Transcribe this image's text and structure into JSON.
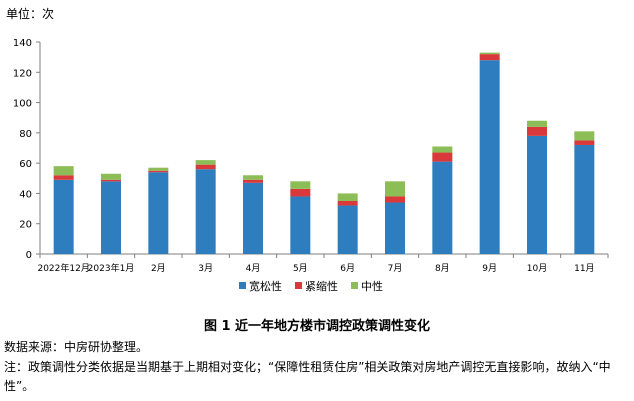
{
  "unit_label": "单位：次",
  "figure_caption": "图 1  近一年地方楼市调控政策调性变化",
  "source_text": "数据来源：中房研协整理。",
  "note_text": "注：政策调性分类依据是当期基于上期相对变化；“保障性租赁住房”相关政策对房地产调控无直接影响，故纳入“中性”。",
  "colors": {
    "宽松性": "#2e7ebf",
    "紧缩性": "#d9393a",
    "中性": "#8dbd56"
  },
  "chart_data": {
    "type": "bar",
    "stacked": true,
    "categories": [
      "2022年12月",
      "2023年1月",
      "2月",
      "3月",
      "4月",
      "5月",
      "6月",
      "7月",
      "8月",
      "9月",
      "10月",
      "11月"
    ],
    "series": [
      {
        "name": "宽松性",
        "values": [
          49,
          48,
          54,
          56,
          47,
          38,
          32,
          34,
          61,
          128,
          78,
          72
        ]
      },
      {
        "name": "紧缩性",
        "values": [
          3,
          1,
          1,
          3,
          2,
          5,
          3,
          4,
          6,
          4,
          6,
          3
        ]
      },
      {
        "name": "中性",
        "values": [
          6,
          4,
          2,
          3,
          3,
          5,
          5,
          10,
          4,
          1,
          4,
          6
        ]
      }
    ],
    "ylim": [
      0,
      140
    ],
    "yticks": [
      0,
      20,
      40,
      60,
      80,
      100,
      120,
      140
    ],
    "grid": false,
    "legend": "bottom"
  }
}
